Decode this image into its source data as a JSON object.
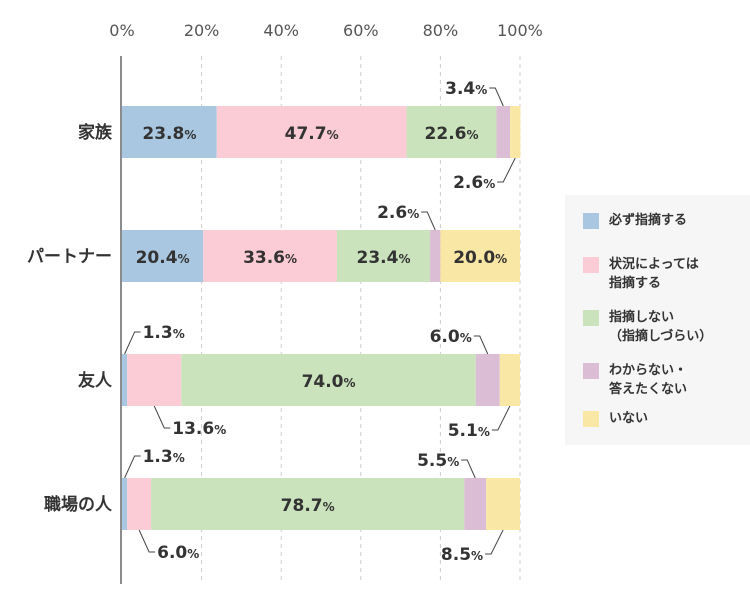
{
  "chart_data": {
    "type": "bar",
    "orientation": "horizontal",
    "stacked": true,
    "categories": [
      "家族",
      "パートナー",
      "友人",
      "職場の人"
    ],
    "xlim": [
      0,
      100
    ],
    "x_ticks": [
      "0%",
      "20%",
      "40%",
      "60%",
      "80%",
      "100%"
    ],
    "grid": true,
    "legend_position": "right",
    "series": [
      {
        "name": "必ず指摘する",
        "color": "#a9c7e0",
        "values": [
          23.8,
          20.4,
          1.3,
          1.3
        ]
      },
      {
        "name": "状況によっては\n指摘する",
        "color": "#fbcbd6",
        "values": [
          47.7,
          33.6,
          13.6,
          6.0
        ]
      },
      {
        "name": "指摘しない\n（指摘しづらい）",
        "color": "#cae3bd",
        "values": [
          22.6,
          23.4,
          74.0,
          78.7
        ]
      },
      {
        "name": "わからない・\n答えたくない",
        "color": "#dbbdd5",
        "values": [
          3.4,
          2.6,
          6.0,
          5.5
        ]
      },
      {
        "name": "いない",
        "color": "#f9e7a6",
        "values": [
          2.6,
          20.0,
          5.1,
          8.5
        ]
      }
    ]
  }
}
